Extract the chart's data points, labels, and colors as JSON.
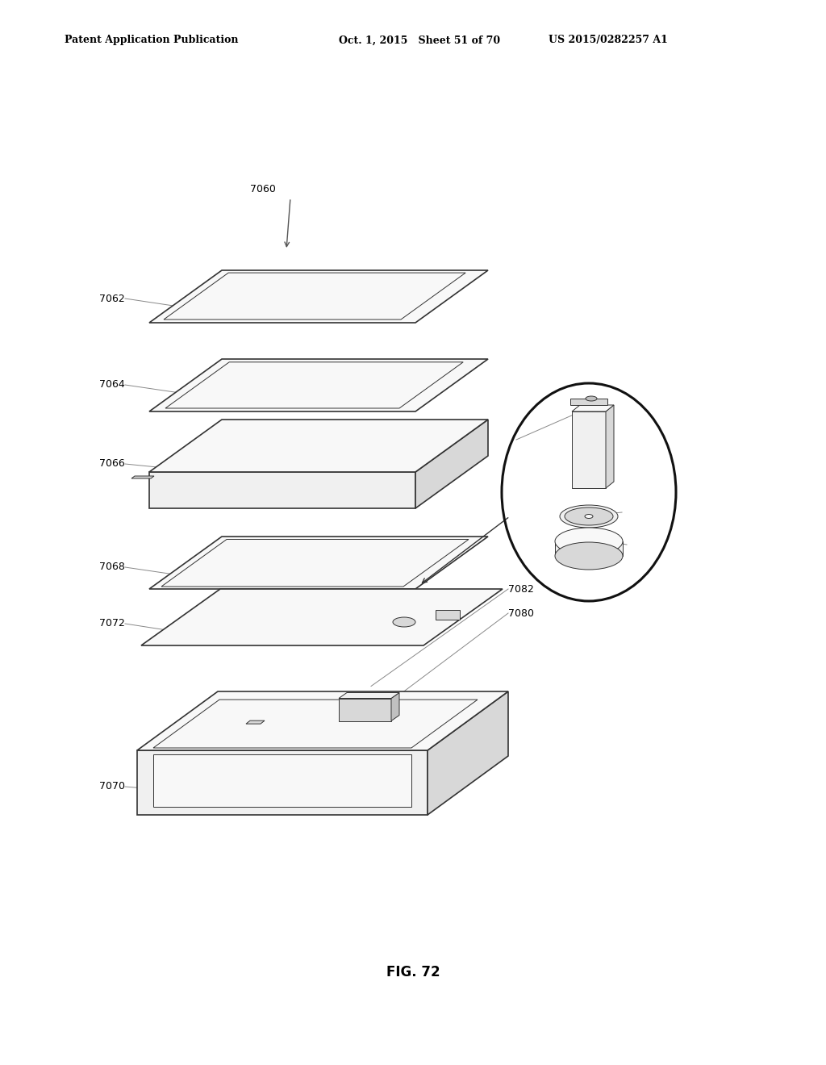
{
  "bg_color": "#ffffff",
  "header_left": "Patent Application Publication",
  "header_mid": "Oct. 1, 2015   Sheet 51 of 70",
  "header_right": "US 2015/0282257 A1",
  "figure_label": "FIG. 72",
  "lc": "#333333",
  "lc_light": "#888888",
  "fill_white": "#ffffff",
  "fill_light": "#f0f0f0",
  "fill_med": "#d8d8d8",
  "fill_dark": "#c0c0c0",
  "lw_thick": 1.2,
  "lw_thin": 0.7,
  "lw_leader": 0.7,
  "fs_label": 9,
  "fs_fig": 12
}
